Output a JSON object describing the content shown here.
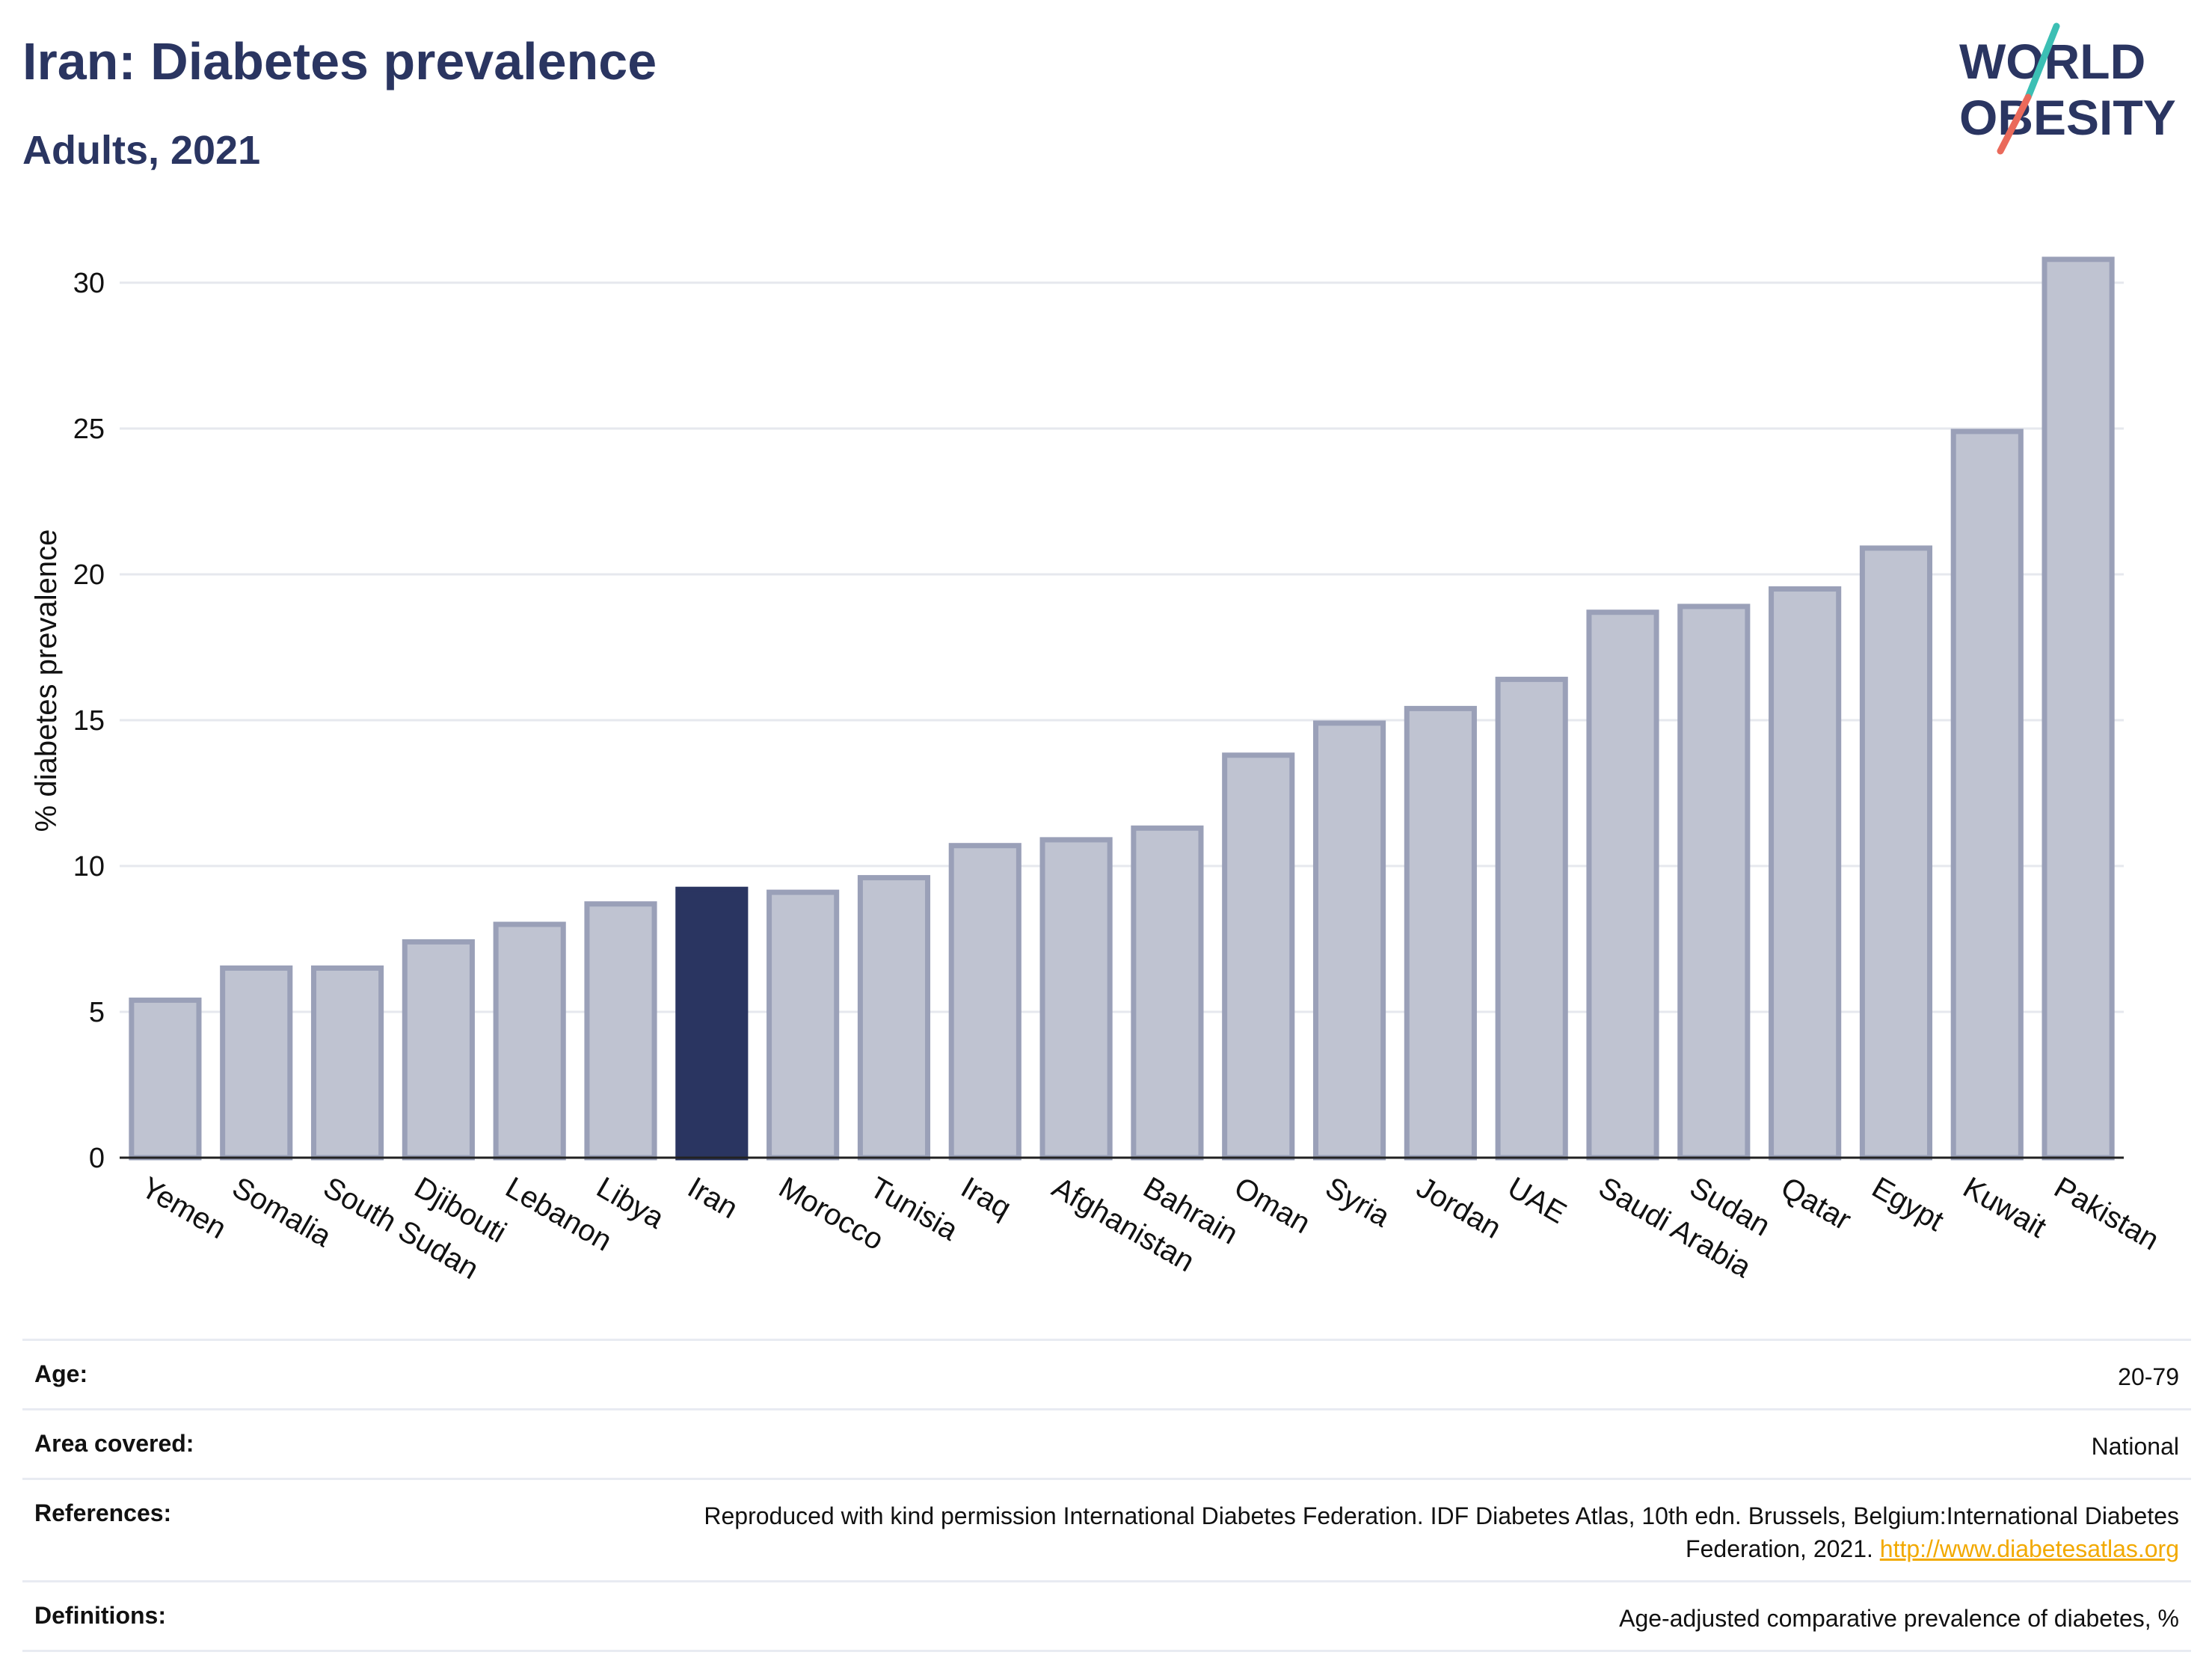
{
  "header": {
    "title": "Iran: Diabetes prevalence",
    "subtitle": "Adults, 2021"
  },
  "logo": {
    "line1": "WORLD",
    "line2": "OBESITY"
  },
  "colors": {
    "highlight": "#2a3561",
    "bar": "#bfc3d1",
    "bar_outline": "#9aa0b8",
    "grid": "#e6e8ee"
  },
  "chart_data": {
    "type": "bar",
    "title": "Iran: Diabetes prevalence",
    "subtitle": "Adults, 2021",
    "xlabel": "",
    "ylabel": "% diabetes prevalence",
    "ylim": [
      0,
      32
    ],
    "yticks": [
      0,
      5,
      10,
      15,
      20,
      25,
      30
    ],
    "grid": true,
    "highlight": "Iran",
    "categories": [
      "Yemen",
      "Somalia",
      "South Sudan",
      "Djibouti",
      "Lebanon",
      "Libya",
      "Iran",
      "Morocco",
      "Tunisia",
      "Iraq",
      "Afghanistan",
      "Bahrain",
      "Oman",
      "Syria",
      "Jordan",
      "UAE",
      "Saudi Arabia",
      "Sudan",
      "Qatar",
      "Egypt",
      "Kuwait",
      "Pakistan"
    ],
    "values": [
      5.4,
      6.5,
      6.5,
      7.4,
      8.0,
      8.7,
      9.2,
      9.1,
      9.6,
      10.7,
      10.9,
      11.3,
      13.8,
      14.9,
      15.4,
      16.4,
      18.7,
      18.9,
      19.5,
      20.9,
      24.9,
      30.8
    ]
  },
  "meta": [
    {
      "label": "Age:",
      "value": "20-79"
    },
    {
      "label": "Area covered:",
      "value": "National"
    },
    {
      "label": "References:",
      "value": "Reproduced with kind permission International Diabetes Federation.  IDF Diabetes Atlas, 10th edn. Brussels, Belgium:International Diabetes Federation, 2021. ",
      "link": "http://www.diabetesatlas.org"
    },
    {
      "label": "Definitions:",
      "value": "Age-adjusted comparative prevalence of diabetes, %"
    }
  ]
}
